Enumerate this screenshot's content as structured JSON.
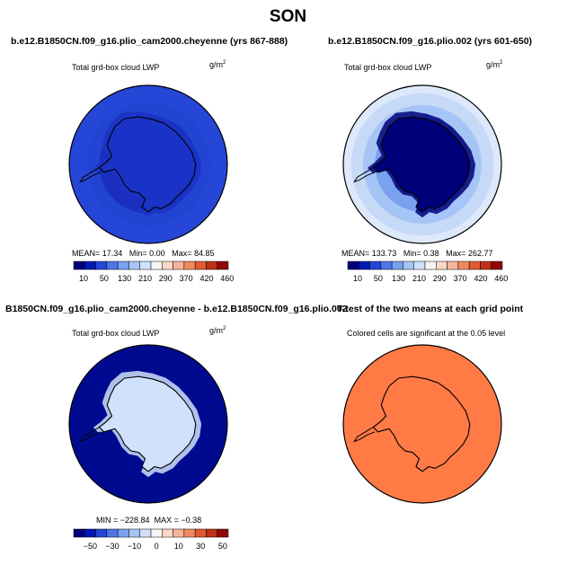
{
  "main_title": "SON",
  "chart_data": [
    {
      "type": "heatmap",
      "panel_title": "b.e12.B1850CN.f09_g16.plio_cam2000.cheyenne (yrs 867-888)",
      "variable_label": "Total grd-box cloud LWP",
      "units": "g/m",
      "units_exp": "2",
      "stats": {
        "mean_label": "MEAN=",
        "mean": "17.34",
        "min_label": "Min=",
        "min": "0.00",
        "max_label": "Max=",
        "max": "84.85"
      },
      "colorbar": {
        "colors": [
          "#00007a",
          "#001ab5",
          "#2546d6",
          "#4f76e6",
          "#7aa1f0",
          "#a5c5f7",
          "#cfe1fb",
          "#f5f5f5",
          "#fbd7c6",
          "#f6b59a",
          "#ef8a60",
          "#df5a30",
          "#c03016",
          "#8f0a06"
        ],
        "tick_labels": [
          "10",
          "50",
          "130",
          "210",
          "290",
          "370",
          "420",
          "460"
        ]
      },
      "rings": [
        {
          "frac": 1.0,
          "color": "#2546d6"
        },
        {
          "frac": 0.78,
          "color": "#2244d2"
        },
        {
          "frac": 0.62,
          "color": "#1a2fc0"
        }
      ],
      "land_fill": "#1b32c6",
      "significance_fill": null
    },
    {
      "type": "heatmap",
      "panel_title": "b.e12.B1850CN.f09_g16.plio.002 (yrs 601-650)",
      "variable_label": "Total grd-box cloud LWP",
      "units": "g/m",
      "units_exp": "2",
      "stats": {
        "mean_label": "MEAN=",
        "mean": "133.73",
        "min_label": "Min=",
        "min": "0.38",
        "max_label": "Max=",
        "max": "262.77"
      },
      "colorbar": {
        "colors": [
          "#00007a",
          "#001ab5",
          "#2546d6",
          "#4f76e6",
          "#7aa1f0",
          "#a5c5f7",
          "#cfe1fb",
          "#f5f5f5",
          "#fbd7c6",
          "#f6b59a",
          "#ef8a60",
          "#df5a30",
          "#c03016",
          "#8f0a06"
        ],
        "tick_labels": [
          "10",
          "50",
          "130",
          "210",
          "290",
          "370",
          "420",
          "460"
        ]
      },
      "rings": [
        {
          "frac": 1.0,
          "color": "#dde8fb"
        },
        {
          "frac": 0.9,
          "color": "#c6d9f7"
        },
        {
          "frac": 0.75,
          "color": "#a5c5f7"
        },
        {
          "frac": 0.6,
          "color": "#7aa1f0"
        }
      ],
      "land_fill": "#00007a",
      "significance_fill": null
    },
    {
      "type": "heatmap",
      "panel_title": "B1850CN.f09_g16.plio_cam2000.cheyenne - b.e12.B1850CN.f09_g16.plio.002",
      "variable_label": "Total grd-box cloud LWP",
      "units": "g/m",
      "units_exp": "2",
      "stats": {
        "min_label": "MIN =",
        "min": "−228.84",
        "max_label": "MAX =",
        "max": "−0.38"
      },
      "colorbar": {
        "colors": [
          "#00007a",
          "#001ab5",
          "#2546d6",
          "#4f76e6",
          "#7aa1f0",
          "#a5c5f7",
          "#cfe1fb",
          "#f5f5f5",
          "#fbd7c6",
          "#f6b59a",
          "#ef8a60",
          "#df5a30",
          "#c03016",
          "#8f0a06"
        ],
        "tick_labels": [
          "−50",
          "−30",
          "−10",
          "0",
          "10",
          "30",
          "50"
        ]
      },
      "rings": [
        {
          "frac": 1.0,
          "color": "#000a90"
        }
      ],
      "land_fill": "#cfe1fb",
      "significance_fill": null
    },
    {
      "type": "heatmap",
      "panel_title": "T-test of the two means at each grid point",
      "variable_label": "Colored cells are significant at the 0.05 level",
      "units": "",
      "units_exp": "",
      "stats": null,
      "colorbar": null,
      "rings": [
        {
          "frac": 1.0,
          "color": "#ff7a45"
        }
      ],
      "land_fill": "#ff7a45",
      "significance_fill": "#ff7a45"
    }
  ]
}
